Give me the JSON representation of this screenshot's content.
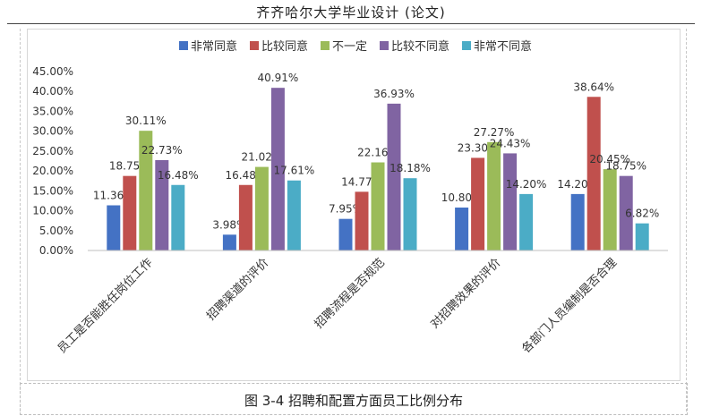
{
  "header": {
    "title": "齐齐哈尔大学毕业设计 (论文)"
  },
  "caption": {
    "text": "图 3-4 招聘和配置方面员工比例分布"
  },
  "chart_data": {
    "type": "bar",
    "title": "",
    "xlabel": "",
    "ylabel": "",
    "ylim": [
      0,
      45
    ],
    "yticks": [
      "0.00%",
      "5.00%",
      "10.00%",
      "15.00%",
      "20.00%",
      "25.00%",
      "30.00%",
      "35.00%",
      "40.00%",
      "45.00%"
    ],
    "grid": false,
    "legend_position": "top",
    "categories": [
      "员工是否能胜任岗位工作",
      "招聘渠道的评价",
      "招聘流程是否规范",
      "对招聘效果的评价",
      "各部门人员编制是否合理"
    ],
    "series": [
      {
        "name": "非常同意",
        "color": "#4472c4",
        "values": [
          11.36,
          3.98,
          7.95,
          10.8,
          14.2
        ],
        "labels": [
          "11.36%",
          "3.98%",
          "7.95%",
          "10.80%",
          "14.20%"
        ]
      },
      {
        "name": "比较同意",
        "color": "#c0504d",
        "values": [
          18.75,
          16.48,
          14.77,
          23.3,
          38.64
        ],
        "labels": [
          "18.75%",
          "16.48%",
          "14.77%",
          "23.30%",
          "38.64%"
        ]
      },
      {
        "name": "不一定",
        "color": "#9bbb59",
        "values": [
          30.11,
          21.02,
          22.16,
          27.27,
          20.45
        ],
        "labels": [
          "30.11%",
          "21.02%",
          "22.16%",
          "27.27%",
          "20.45%"
        ]
      },
      {
        "name": "比较不同意",
        "color": "#8064a2",
        "values": [
          22.73,
          40.91,
          36.93,
          24.43,
          18.75
        ],
        "labels": [
          "22.73%",
          "40.91%",
          "36.93%",
          "24.43%",
          "18.75%"
        ]
      },
      {
        "name": "非常不同意",
        "color": "#4bacc6",
        "values": [
          16.48,
          17.61,
          18.18,
          14.2,
          6.82
        ],
        "labels": [
          "16.48%",
          "17.61%",
          "18.18%",
          "14.20%",
          "6.82%"
        ]
      }
    ]
  }
}
